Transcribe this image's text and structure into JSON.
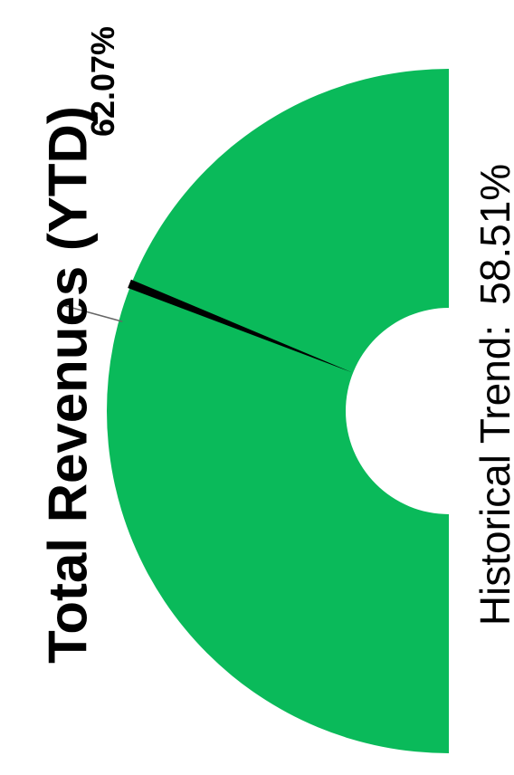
{
  "chart_data": {
    "type": "gauge",
    "title": "Total Revenues (YTD)",
    "value_label": "62.07%",
    "value": 62.07,
    "historical_label": "Historical Trend:",
    "historical_value_label": "58.51%",
    "historical_value": 58.51,
    "range": [
      0,
      100
    ],
    "fill_color": "#0aba5a",
    "needle_color": "#000000"
  }
}
